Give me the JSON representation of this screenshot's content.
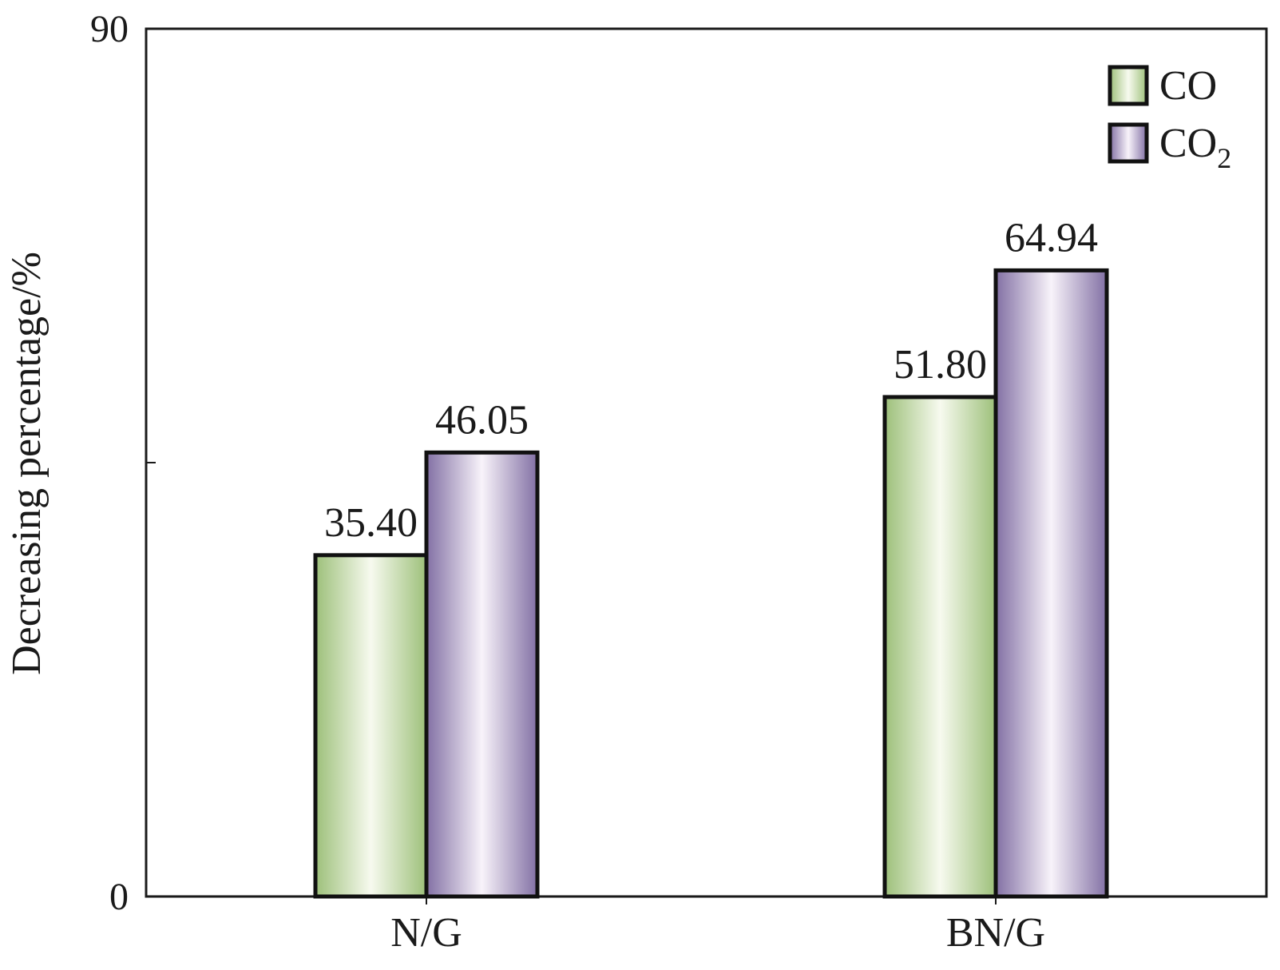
{
  "chart_data": {
    "type": "bar",
    "categories": [
      "N/G",
      "BN/G"
    ],
    "series": [
      {
        "name": "CO",
        "values": [
          35.4,
          51.8
        ],
        "labels": [
          "35.40",
          "51.80"
        ],
        "color": "#9dc07a",
        "highlight": "#f7faef"
      },
      {
        "name": "CO",
        "name_sub": "2",
        "values": [
          46.05,
          64.94
        ],
        "labels": [
          "46.05",
          "64.94"
        ],
        "color": "#8270a4",
        "highlight": "#f8f3fa"
      }
    ],
    "title": "",
    "xlabel": "",
    "ylabel": "Decreasing percentage/%",
    "ylim": [
      0,
      90
    ],
    "yticks": [
      0,
      45,
      90
    ],
    "ytick_labels": [
      "0",
      "",
      "90"
    ],
    "grid": false,
    "legend": "top-right"
  }
}
